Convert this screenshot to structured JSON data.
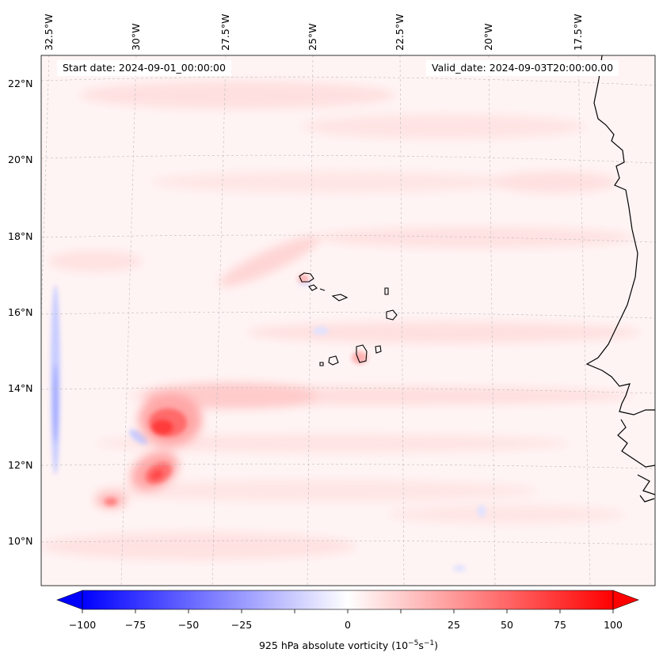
{
  "map": {
    "lon_labels": [
      "32.5°W",
      "30°W",
      "27.5°W",
      "25°W",
      "22.5°W",
      "20°W",
      "17.5°W"
    ],
    "lat_labels": [
      "22°N",
      "20°N",
      "18°N",
      "16°N",
      "14°N",
      "12°N",
      "10°N"
    ],
    "start_date": "Start date: 2024-09-01_00:00:00",
    "valid_date": "Valid_date: 2024-09-03T20:00:00.00",
    "field": "925 hPa absolute vorticity"
  },
  "colorbar": {
    "ticks": [
      "−100",
      "−75",
      "−50",
      "−25",
      "0",
      "25",
      "50",
      "75",
      "100"
    ],
    "label_prefix": "925 hPa absolute vorticity (10",
    "label_exp1": "−5",
    "label_mid": "s",
    "label_exp2": "−1",
    "label_suffix": ")",
    "min_color": "#0000ff",
    "mid_color": "#ffffff",
    "max_color": "#ff0000"
  }
}
